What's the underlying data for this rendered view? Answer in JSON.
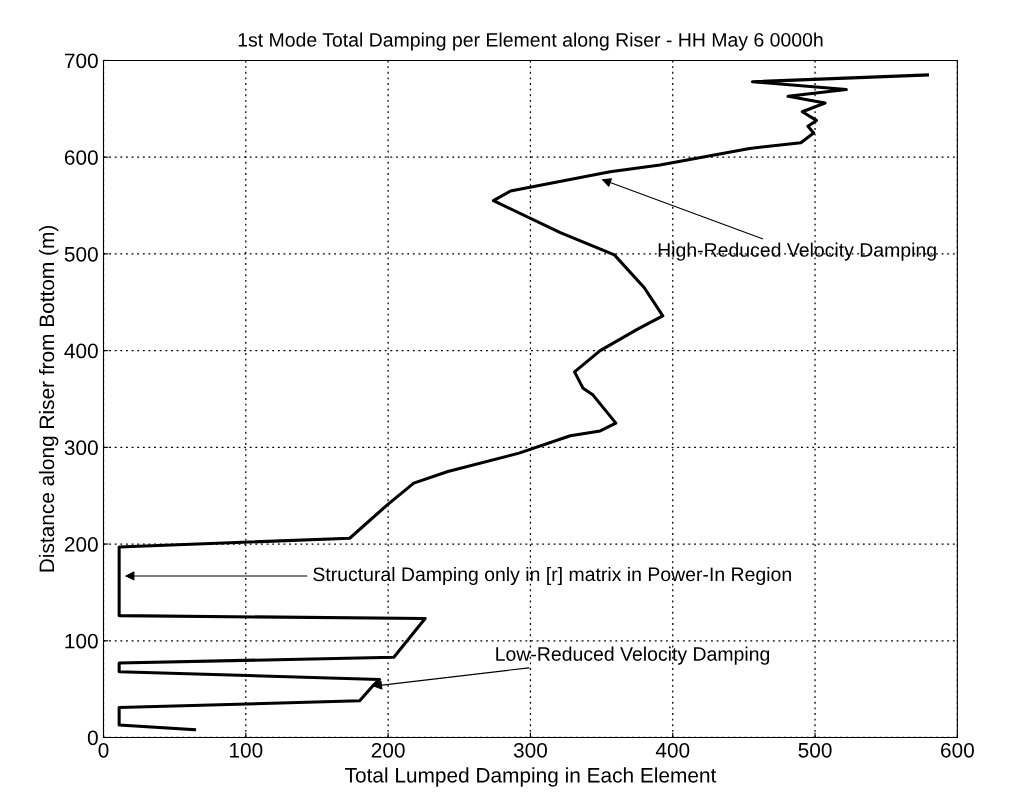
{
  "chart_data": {
    "type": "line",
    "title": "1st Mode Total Damping per Element along Riser - HH May 6 0000h",
    "xlabel": "Total Lumped Damping in Each Element",
    "ylabel": "Distance along Riser from Bottom (m)",
    "series": [
      {
        "color": "#000000",
        "x": [
          64,
          11,
          11,
          180,
          189,
          194,
          11,
          11,
          204,
          226,
          11,
          11,
          173,
          199,
          218,
          242,
          292,
          328,
          349,
          360,
          344,
          337,
          331,
          349,
          375,
          393,
          380,
          359,
          321,
          274,
          286,
          356,
          391,
          454,
          490,
          499,
          495,
          501,
          491,
          507,
          481,
          522,
          456,
          579
        ],
        "values": [
          8,
          13,
          31,
          38,
          53,
          60,
          68,
          77,
          83,
          123,
          126,
          197,
          206,
          240,
          263,
          275,
          294,
          312,
          317,
          325,
          354,
          361,
          378,
          400,
          422,
          436,
          465,
          499,
          522,
          555,
          565,
          585,
          592,
          609,
          615,
          625,
          632,
          638,
          647,
          656,
          663,
          670,
          678,
          685
        ]
      }
    ],
    "xlim": [
      0,
      600
    ],
    "ylim": [
      0,
      700
    ],
    "xticks": [
      0,
      100,
      200,
      300,
      400,
      500,
      600
    ],
    "yticks": [
      0,
      100,
      200,
      300,
      400,
      500,
      600,
      700
    ],
    "grid": true,
    "line_style": "solid",
    "marker": "none",
    "annotations": [
      {
        "text": "High-Reduced Velocity Damping",
        "x": 350,
        "y": 577
      },
      {
        "text": "Structural Damping only in [r] matrix in Power-In Region",
        "x": 15,
        "y": 167
      },
      {
        "text": "Low-Reduced Velocity Damping",
        "x": 189,
        "y": 53
      }
    ]
  }
}
